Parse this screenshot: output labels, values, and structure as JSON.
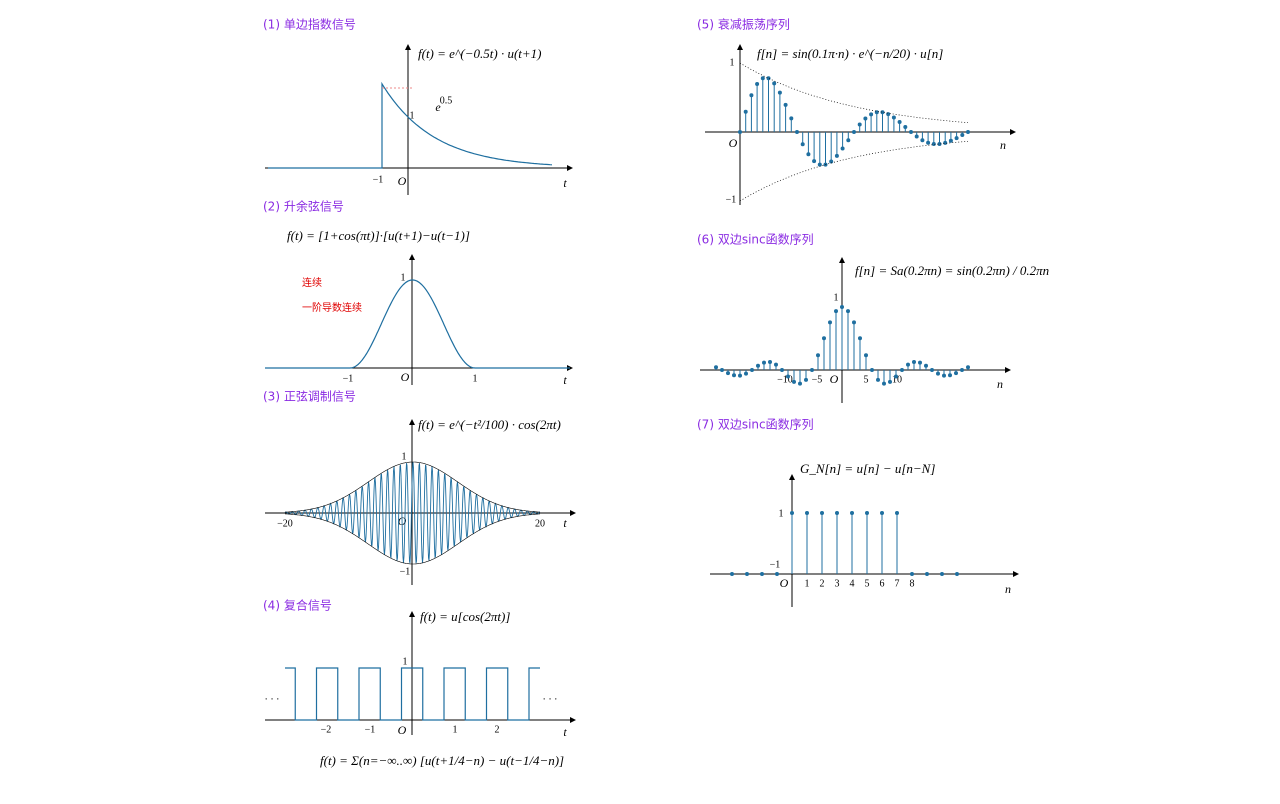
{
  "panels": [
    {
      "title": "(1) 单边指数信号",
      "formula": "f(t) = e^(−0.5t) · u(t+1)",
      "labels": [
        "−1",
        "O",
        "t",
        "1",
        "e",
        "0.5"
      ]
    },
    {
      "title": "(2) 升余弦信号",
      "formula": "f(t) = [1+cos(πt)]·[u(t+1)−u(t−1)]",
      "labels": [
        "−1",
        "O",
        "1",
        "t",
        "1"
      ],
      "notes": [
        "连续",
        "一阶导数连续"
      ]
    },
    {
      "title": "(3) 正弦调制信号",
      "formula": "f(t) = e^(−t²/100) · cos(2πt)",
      "labels": [
        "−20",
        "O",
        "20",
        "t",
        "1",
        "−1"
      ]
    },
    {
      "title": "(4) 复合信号",
      "formula": "f(t) = u[cos(2πt)]",
      "labels": [
        "−2",
        "−1",
        "1",
        "2",
        "O",
        "t",
        "1",
        "· · ·",
        "· · ·"
      ],
      "formula2": "f(t) = Σ(n=−∞..∞) [u(t+1/4−n) − u(t−1/4−n)]"
    },
    {
      "title": "(5) 衰减振荡序列",
      "formula": "f[n] = sin(0.1π·n) · e^(−n/20) · u[n]",
      "labels": [
        "1",
        "O",
        "n",
        "−1"
      ]
    },
    {
      "title": "(6) 双边sinc函数序列",
      "formula": "f[n] = Sa(0.2πn) = sin(0.2πn) / 0.2πn",
      "labels": [
        "−10",
        "−5",
        "O",
        "5",
        "10",
        "n",
        "1"
      ]
    },
    {
      "title": "(7) 双边sinc函数序列",
      "formula": "G_N[n] = u[n] − u[n−N]",
      "labels": [
        "1",
        "−1",
        "O",
        "1",
        "2",
        "3",
        "4",
        "5",
        "6",
        "7",
        "8",
        "n"
      ]
    }
  ]
}
